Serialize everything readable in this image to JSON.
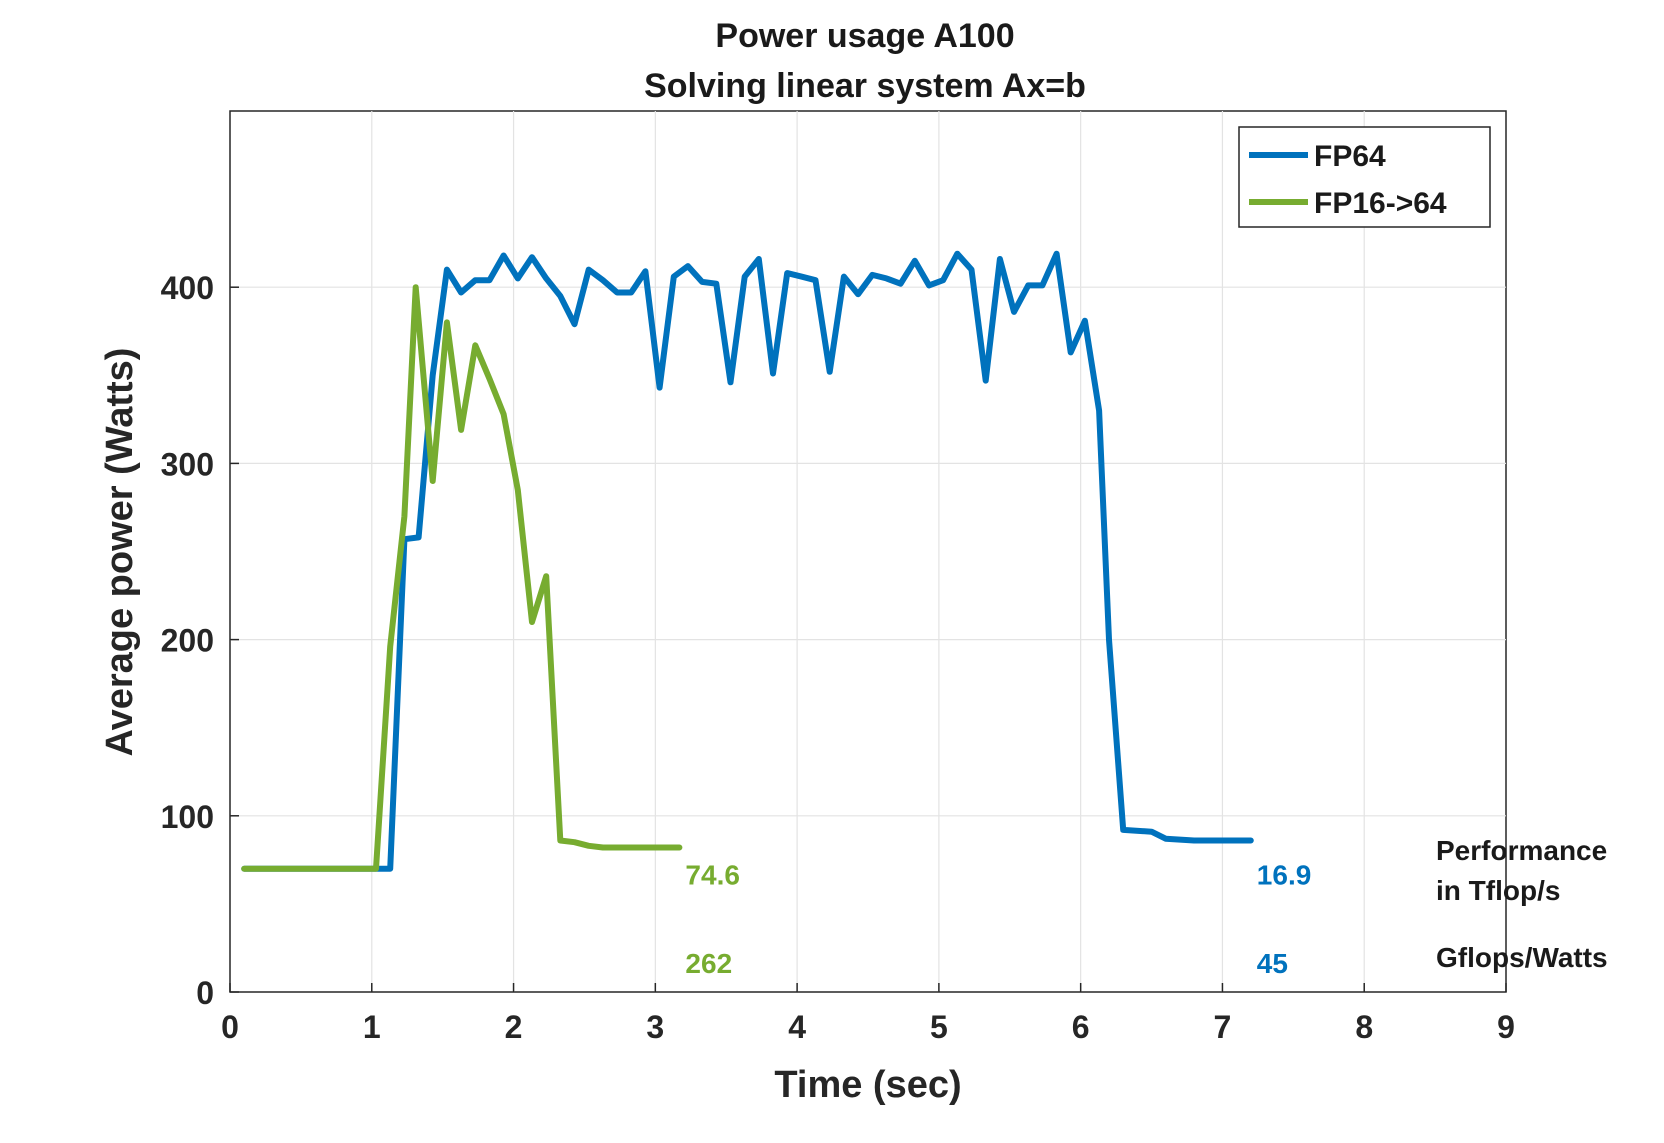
{
  "chart_data": {
    "type": "line",
    "title": "Power usage  A100",
    "subtitle": "Solving linear system Ax=b",
    "xlabel": "Time (sec)",
    "ylabel": "Average power (Watts)",
    "xlim": [
      0,
      9
    ],
    "ylim": [
      0,
      500
    ],
    "xticks": [
      0,
      1,
      2,
      3,
      4,
      5,
      6,
      7,
      8,
      9
    ],
    "yticks": [
      0,
      100,
      200,
      300,
      400
    ],
    "grid": true,
    "legend_position": "top-right",
    "series": [
      {
        "name": "FP64",
        "color": "#0072BD",
        "x": [
          0.1,
          0.3,
          0.5,
          0.7,
          0.9,
          1.05,
          1.13,
          1.23,
          1.33,
          1.43,
          1.53,
          1.63,
          1.73,
          1.83,
          1.93,
          2.03,
          2.13,
          2.23,
          2.33,
          2.43,
          2.53,
          2.63,
          2.73,
          2.83,
          2.93,
          3.03,
          3.13,
          3.23,
          3.33,
          3.43,
          3.53,
          3.63,
          3.73,
          3.83,
          3.93,
          4.03,
          4.13,
          4.23,
          4.33,
          4.43,
          4.53,
          4.63,
          4.73,
          4.83,
          4.93,
          5.03,
          5.13,
          5.23,
          5.33,
          5.43,
          5.53,
          5.63,
          5.73,
          5.83,
          5.93,
          6.03,
          6.13,
          6.2,
          6.3,
          6.5,
          6.6,
          6.8,
          7.0,
          7.2
        ],
        "y": [
          70,
          70,
          70,
          70,
          70,
          70,
          70,
          257,
          258,
          350,
          410,
          397,
          404,
          404,
          418,
          405,
          417,
          405,
          395,
          379,
          410,
          404,
          397,
          397,
          409,
          343,
          406,
          412,
          403,
          402,
          346,
          406,
          416,
          351,
          408,
          406,
          404,
          352,
          406,
          396,
          407,
          405,
          402,
          415,
          401,
          404,
          419,
          410,
          347,
          416,
          386,
          401,
          401,
          419,
          363,
          381,
          330,
          200,
          92,
          91,
          87,
          86,
          86,
          86
        ]
      },
      {
        "name": "FP16->64",
        "color": "#77AC30",
        "x": [
          0.1,
          0.3,
          0.5,
          0.7,
          0.9,
          1.03,
          1.13,
          1.23,
          1.31,
          1.43,
          1.53,
          1.63,
          1.73,
          1.83,
          1.93,
          2.03,
          2.13,
          2.23,
          2.33,
          2.43,
          2.53,
          2.63,
          2.73,
          2.83,
          2.93,
          3.03,
          3.17
        ],
        "y": [
          70,
          70,
          70,
          70,
          70,
          70,
          196,
          270,
          400,
          290,
          380,
          319,
          367,
          348,
          328,
          285,
          210,
          236,
          86,
          85,
          83,
          82,
          82,
          82,
          82,
          82,
          82
        ]
      }
    ],
    "annotations": [
      {
        "text": "74.6",
        "x": 3.17,
        "y": 70,
        "color": "#77AC30"
      },
      {
        "text": "262",
        "x": 3.17,
        "y": 20,
        "color": "#77AC30"
      },
      {
        "text": "16.9",
        "x": 7.2,
        "y": 70,
        "color": "#0072BD"
      },
      {
        "text": "45",
        "x": 7.2,
        "y": 20,
        "color": "#0072BD"
      }
    ],
    "side_labels": {
      "performance_line1": "Performance",
      "performance_line2": "in Tflop/s",
      "efficiency": "Gflops/Watts"
    }
  }
}
